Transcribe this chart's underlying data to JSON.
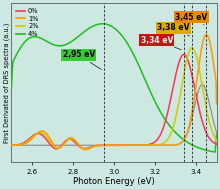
{
  "title": "",
  "xlabel": "Photon Energy (eV)",
  "ylabel": "First Derivated of DRS spectra (a.u.)",
  "xlim": [
    2.5,
    3.5
  ],
  "bg_color": "#cce8e0",
  "dashed_lines": [
    2.95,
    3.34,
    3.38,
    3.45
  ],
  "legend": [
    {
      "label": "0%",
      "color": "#ff3355"
    },
    {
      "label": "1%",
      "color": "#ff9900"
    },
    {
      "label": "2%",
      "color": "#cccc00"
    },
    {
      "label": "4%",
      "color": "#22bb22"
    }
  ],
  "series_colors": [
    "#ff3355",
    "#ff9900",
    "#cccc00",
    "#22bb22"
  ],
  "gray_color": "#888888",
  "ann_2_95": {
    "text": "2,95 eV",
    "bg": "#33cc33",
    "fc": "black"
  },
  "ann_3_34": {
    "text": "3,34 eV",
    "bg": "#cc1111",
    "fc": "white"
  },
  "ann_3_38": {
    "text": "3,38 eV",
    "bg": "#ddaa00",
    "fc": "black"
  },
  "ann_3_45": {
    "text": "3,45 eV",
    "bg": "#ee8800",
    "fc": "black"
  }
}
